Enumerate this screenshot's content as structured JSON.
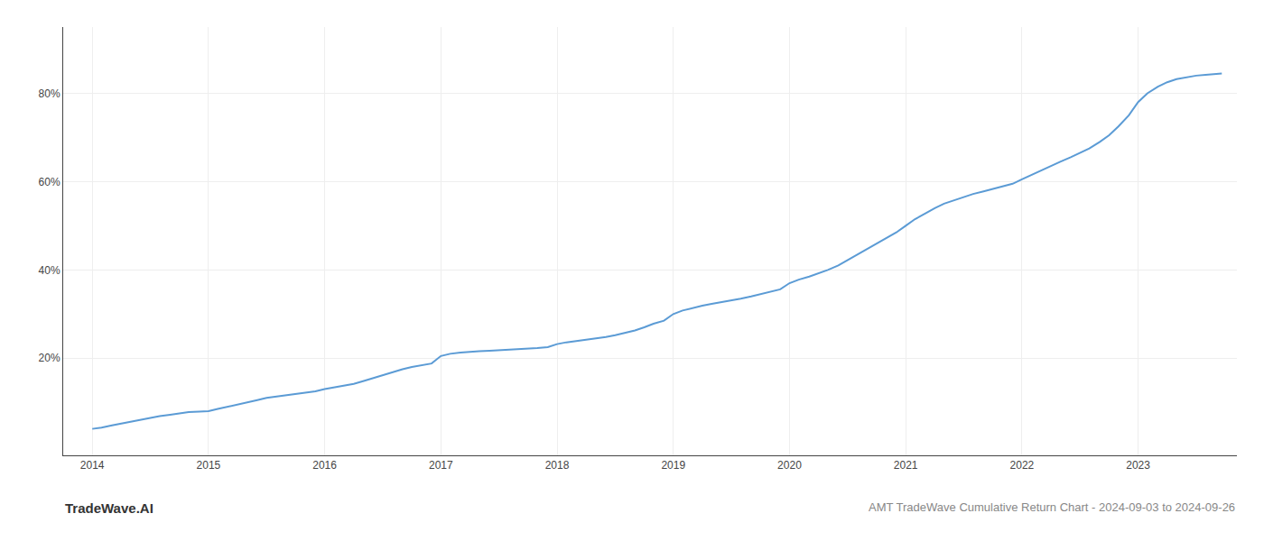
{
  "chart_data": {
    "type": "line",
    "x": [
      2014.0,
      2014.08,
      2014.17,
      2014.25,
      2014.33,
      2014.42,
      2014.5,
      2014.58,
      2014.67,
      2014.75,
      2014.83,
      2014.92,
      2015.0,
      2015.08,
      2015.17,
      2015.25,
      2015.33,
      2015.42,
      2015.5,
      2015.58,
      2015.67,
      2015.75,
      2015.83,
      2015.92,
      2016.0,
      2016.08,
      2016.17,
      2016.25,
      2016.33,
      2016.42,
      2016.5,
      2016.58,
      2016.67,
      2016.75,
      2016.83,
      2016.92,
      2017.0,
      2017.08,
      2017.17,
      2017.25,
      2017.33,
      2017.42,
      2017.5,
      2017.58,
      2017.67,
      2017.75,
      2017.83,
      2017.92,
      2018.0,
      2018.08,
      2018.17,
      2018.25,
      2018.33,
      2018.42,
      2018.5,
      2018.58,
      2018.67,
      2018.75,
      2018.83,
      2018.92,
      2019.0,
      2019.08,
      2019.17,
      2019.25,
      2019.33,
      2019.42,
      2019.5,
      2019.58,
      2019.67,
      2019.75,
      2019.83,
      2019.92,
      2020.0,
      2020.08,
      2020.17,
      2020.25,
      2020.33,
      2020.42,
      2020.5,
      2020.58,
      2020.67,
      2020.75,
      2020.83,
      2020.92,
      2021.0,
      2021.08,
      2021.17,
      2021.25,
      2021.33,
      2021.42,
      2021.5,
      2021.58,
      2021.67,
      2021.75,
      2021.83,
      2021.92,
      2022.0,
      2022.08,
      2022.17,
      2022.25,
      2022.33,
      2022.42,
      2022.5,
      2022.58,
      2022.67,
      2022.75,
      2022.83,
      2022.92,
      2023.0,
      2023.08,
      2023.17,
      2023.25,
      2023.33,
      2023.42,
      2023.5,
      2023.58,
      2023.67,
      2023.72
    ],
    "values": [
      4.0,
      4.3,
      4.8,
      5.2,
      5.7,
      6.1,
      6.5,
      6.9,
      7.2,
      7.5,
      7.8,
      7.9,
      8.0,
      8.5,
      9.0,
      9.5,
      10.0,
      10.5,
      11.0,
      11.3,
      11.6,
      11.9,
      12.2,
      12.5,
      13.0,
      13.4,
      13.8,
      14.2,
      14.8,
      15.5,
      16.2,
      16.9,
      17.5,
      18.0,
      18.4,
      18.8,
      20.5,
      21.0,
      21.3,
      21.5,
      21.6,
      21.7,
      21.8,
      21.9,
      22.0,
      22.1,
      22.3,
      22.5,
      23.2,
      23.6,
      23.9,
      24.2,
      24.5,
      24.8,
      25.2,
      25.7,
      26.3,
      27.0,
      27.8,
      28.5,
      30.0,
      30.8,
      31.4,
      31.9,
      32.3,
      32.7,
      33.1,
      33.5,
      34.0,
      34.5,
      35.0,
      35.6,
      37.0,
      37.8,
      38.5,
      39.2,
      40.0,
      41.0,
      42.2,
      43.5,
      44.8,
      46.0,
      47.2,
      48.5,
      50.0,
      51.5,
      52.8,
      54.0,
      55.0,
      55.8,
      56.5,
      57.2,
      57.8,
      58.3,
      58.8,
      59.5,
      60.5,
      61.5,
      62.5,
      63.5,
      64.5,
      65.5,
      66.5,
      67.5,
      69.0,
      70.5,
      72.5,
      75.0,
      78.0,
      80.0,
      81.5,
      82.5,
      83.2,
      83.7,
      84.0,
      84.2,
      84.4,
      84.5
    ],
    "color": "#5b9bd5",
    "xlim": [
      2013.75,
      2023.85
    ],
    "xticks": [
      2014,
      2015,
      2016,
      2017,
      2018,
      2019,
      2020,
      2021,
      2022,
      2023
    ],
    "ylim": [
      -2,
      95
    ],
    "yticks": [
      {
        "value": 20,
        "label": "20%"
      },
      {
        "value": 40,
        "label": "40%"
      },
      {
        "value": 60,
        "label": "60%"
      },
      {
        "value": 80,
        "label": "80%"
      }
    ],
    "grid": true,
    "annotations": [
      "TradeWave.AI",
      "AMT TradeWave Cumulative Return Chart - 2024-09-03 to 2024-09-26"
    ]
  }
}
